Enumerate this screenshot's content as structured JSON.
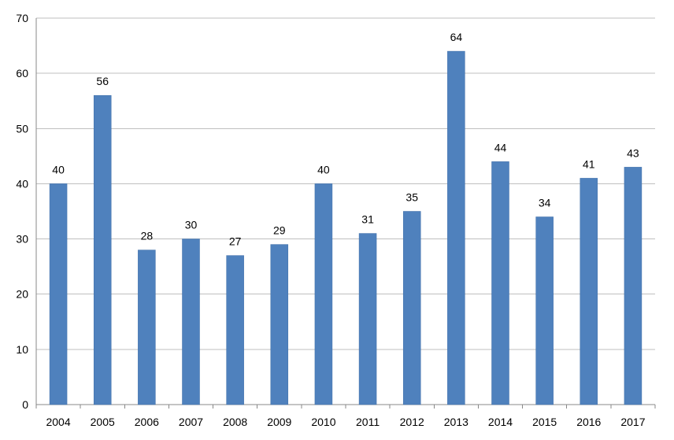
{
  "colors": {
    "bar": "#4F81BD",
    "bar_stroke": "#3f6ea8",
    "grid": "#bfbfbf",
    "axis": "#888888",
    "background": "#ffffff"
  },
  "chart_data": {
    "type": "bar",
    "title": "",
    "xlabel": "",
    "ylabel": "",
    "categories": [
      "2004",
      "2005",
      "2006",
      "2007",
      "2008",
      "2009",
      "2010",
      "2011",
      "2012",
      "2013",
      "2014",
      "2015",
      "2016",
      "2017"
    ],
    "values": [
      40,
      56,
      28,
      30,
      27,
      29,
      40,
      31,
      35,
      64,
      44,
      34,
      41,
      43
    ],
    "ylim": [
      0,
      70
    ],
    "yticks": [
      0,
      10,
      20,
      30,
      40,
      50,
      60,
      70
    ],
    "grid": true,
    "legend": "none",
    "data_labels": true
  }
}
